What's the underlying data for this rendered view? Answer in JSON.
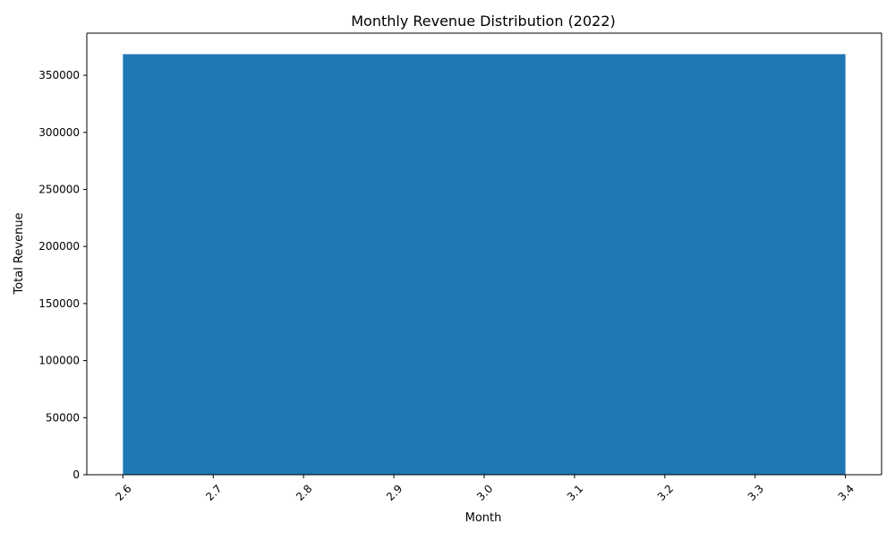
{
  "chart_data": {
    "type": "bar",
    "title": "Monthly Revenue Distribution (2022)",
    "xlabel": "Month",
    "ylabel": "Total Revenue",
    "bars": [
      {
        "x": 3.0,
        "width": 0.8,
        "value": 368500
      }
    ],
    "xlim": [
      2.56,
      3.44
    ],
    "ylim": [
      0,
      386925
    ],
    "xticks": [
      "2.6",
      "2.7",
      "2.8",
      "2.9",
      "3.0",
      "3.1",
      "3.2",
      "3.3",
      "3.4"
    ],
    "yticks": [
      "0",
      "50000",
      "100000",
      "150000",
      "200000",
      "250000",
      "300000",
      "350000"
    ],
    "bar_color": "#1f77b4",
    "grid": false,
    "x_tick_rotation": "45 degrees"
  }
}
